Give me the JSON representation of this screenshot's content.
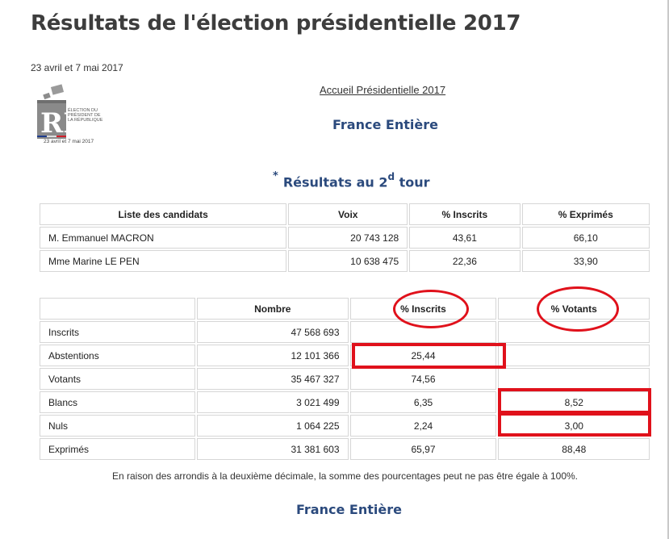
{
  "header": {
    "title": "Résultats de l'élection présidentielle 2017",
    "dates": "23 avril et 7 mai 2017"
  },
  "logo": {
    "text": "ÉLECTION DU PRÉSIDENT DE LA RÉPUBLIQUE",
    "date": "23 avril et 7 mai 2017"
  },
  "nav": {
    "home_link": "Accueil Présidentielle 2017"
  },
  "region_heading": "France Entière",
  "results_title": {
    "star": "*",
    "prefix": "Résultats au 2",
    "sup": "d",
    "suffix": " tour"
  },
  "candidates_table": {
    "headers": [
      "Liste des candidats",
      "Voix",
      "% Inscrits",
      "% Exprimés"
    ],
    "rows": [
      [
        "M. Emmanuel MACRON",
        "20 743 128",
        "43,61",
        "66,10"
      ],
      [
        "Mme Marine LE PEN",
        "10 638 475",
        "22,36",
        "33,90"
      ]
    ]
  },
  "turnout_table": {
    "headers": [
      "",
      "Nombre",
      "% Inscrits",
      "% Votants"
    ],
    "rows": [
      [
        "Inscrits",
        "47 568 693",
        "",
        ""
      ],
      [
        "Abstentions",
        "12 101 366",
        "25,44",
        ""
      ],
      [
        "Votants",
        "35 467 327",
        "74,56",
        ""
      ],
      [
        "Blancs",
        "3 021 499",
        "6,35",
        "8,52"
      ],
      [
        "Nuls",
        "1 064 225",
        "2,24",
        "3,00"
      ],
      [
        "Exprimés",
        "31 381 603",
        "65,97",
        "88,48"
      ]
    ]
  },
  "note": "En raison des arrondis à la deuxième décimale, la somme des pourcentages peut ne pas être égale à 100%.",
  "footer_heading": "France Entière",
  "colors": {
    "heading_blue": "#2b4a7d",
    "annotation_red": "#e0111b"
  }
}
